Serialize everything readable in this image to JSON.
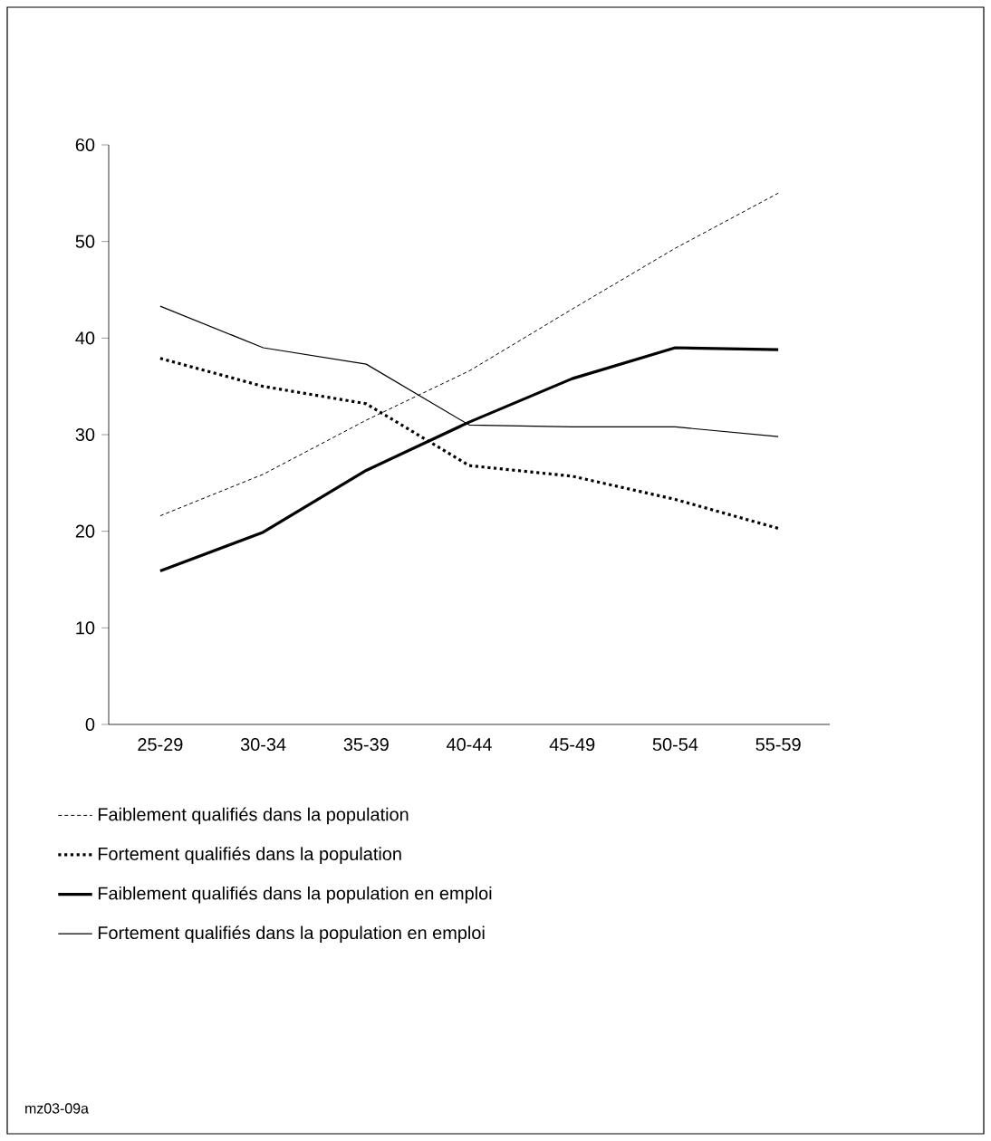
{
  "chart_data": {
    "type": "line",
    "categories": [
      "25-29",
      "30-34",
      "35-39",
      "40-44",
      "45-49",
      "50-54",
      "55-59"
    ],
    "series": [
      {
        "name": "Faiblement qualifiés dans la population",
        "color": "#000000",
        "line_style": "dashed",
        "values": [
          21.6,
          25.9,
          31.5,
          36.6,
          43,
          49.3,
          55
        ]
      },
      {
        "name": "Fortement qualifiés dans la population",
        "color": "#000000",
        "line_style": "dotted",
        "values": [
          37.9,
          35,
          33.2,
          26.8,
          25.7,
          23.3,
          20.3
        ]
      },
      {
        "name": "Faiblement qualifiés dans la population en emploi",
        "color": "#000000",
        "line_style": "solid",
        "values": [
          15.9,
          19.9,
          26.3,
          31.3,
          35.8,
          39,
          38.8
        ]
      },
      {
        "name": "Fortement qualifiés dans la population en emploi",
        "color": "#000000",
        "line_style": "solid",
        "values": [
          43.3,
          39,
          37.3,
          31,
          30.8,
          30.8,
          29.8
        ]
      }
    ],
    "ylim": [
      0,
      60
    ],
    "yticks": [
      0,
      10,
      20,
      30,
      40,
      50,
      60
    ],
    "grid": false,
    "legend": "bottom",
    "marker": "none",
    "annotations": [
      "mz03-09a"
    ]
  }
}
